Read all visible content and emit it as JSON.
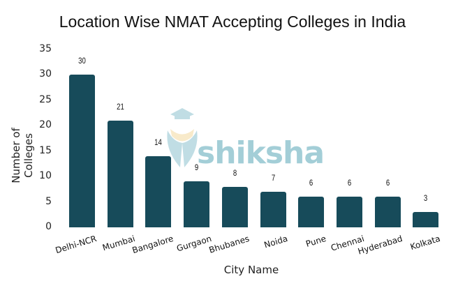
{
  "chart_data": {
    "type": "bar",
    "title": "Location Wise NMAT Accepting Colleges in India",
    "xlabel": "City Name",
    "ylabel": "Number of Colleges",
    "categories": [
      "Delhi-NCR",
      "Mumbai",
      "Bangalore",
      "Gurgaon",
      "Bhubanes",
      "Noida",
      "Pune",
      "Chennai",
      "Hyderabad",
      "Kolkata"
    ],
    "values": [
      30,
      21,
      14,
      9,
      8,
      7,
      6,
      6,
      6,
      3
    ],
    "data_labels": [
      "30",
      "21",
      "14",
      "9",
      "8",
      "7",
      "6",
      "6",
      "6",
      "3"
    ],
    "yticks": [
      "0",
      "5",
      "10",
      "15",
      "20",
      "25",
      "30",
      "35"
    ],
    "ylim": [
      0,
      35
    ],
    "grid": false,
    "legend": null,
    "bar_color": "#174b5a",
    "watermark": "shiksha"
  }
}
